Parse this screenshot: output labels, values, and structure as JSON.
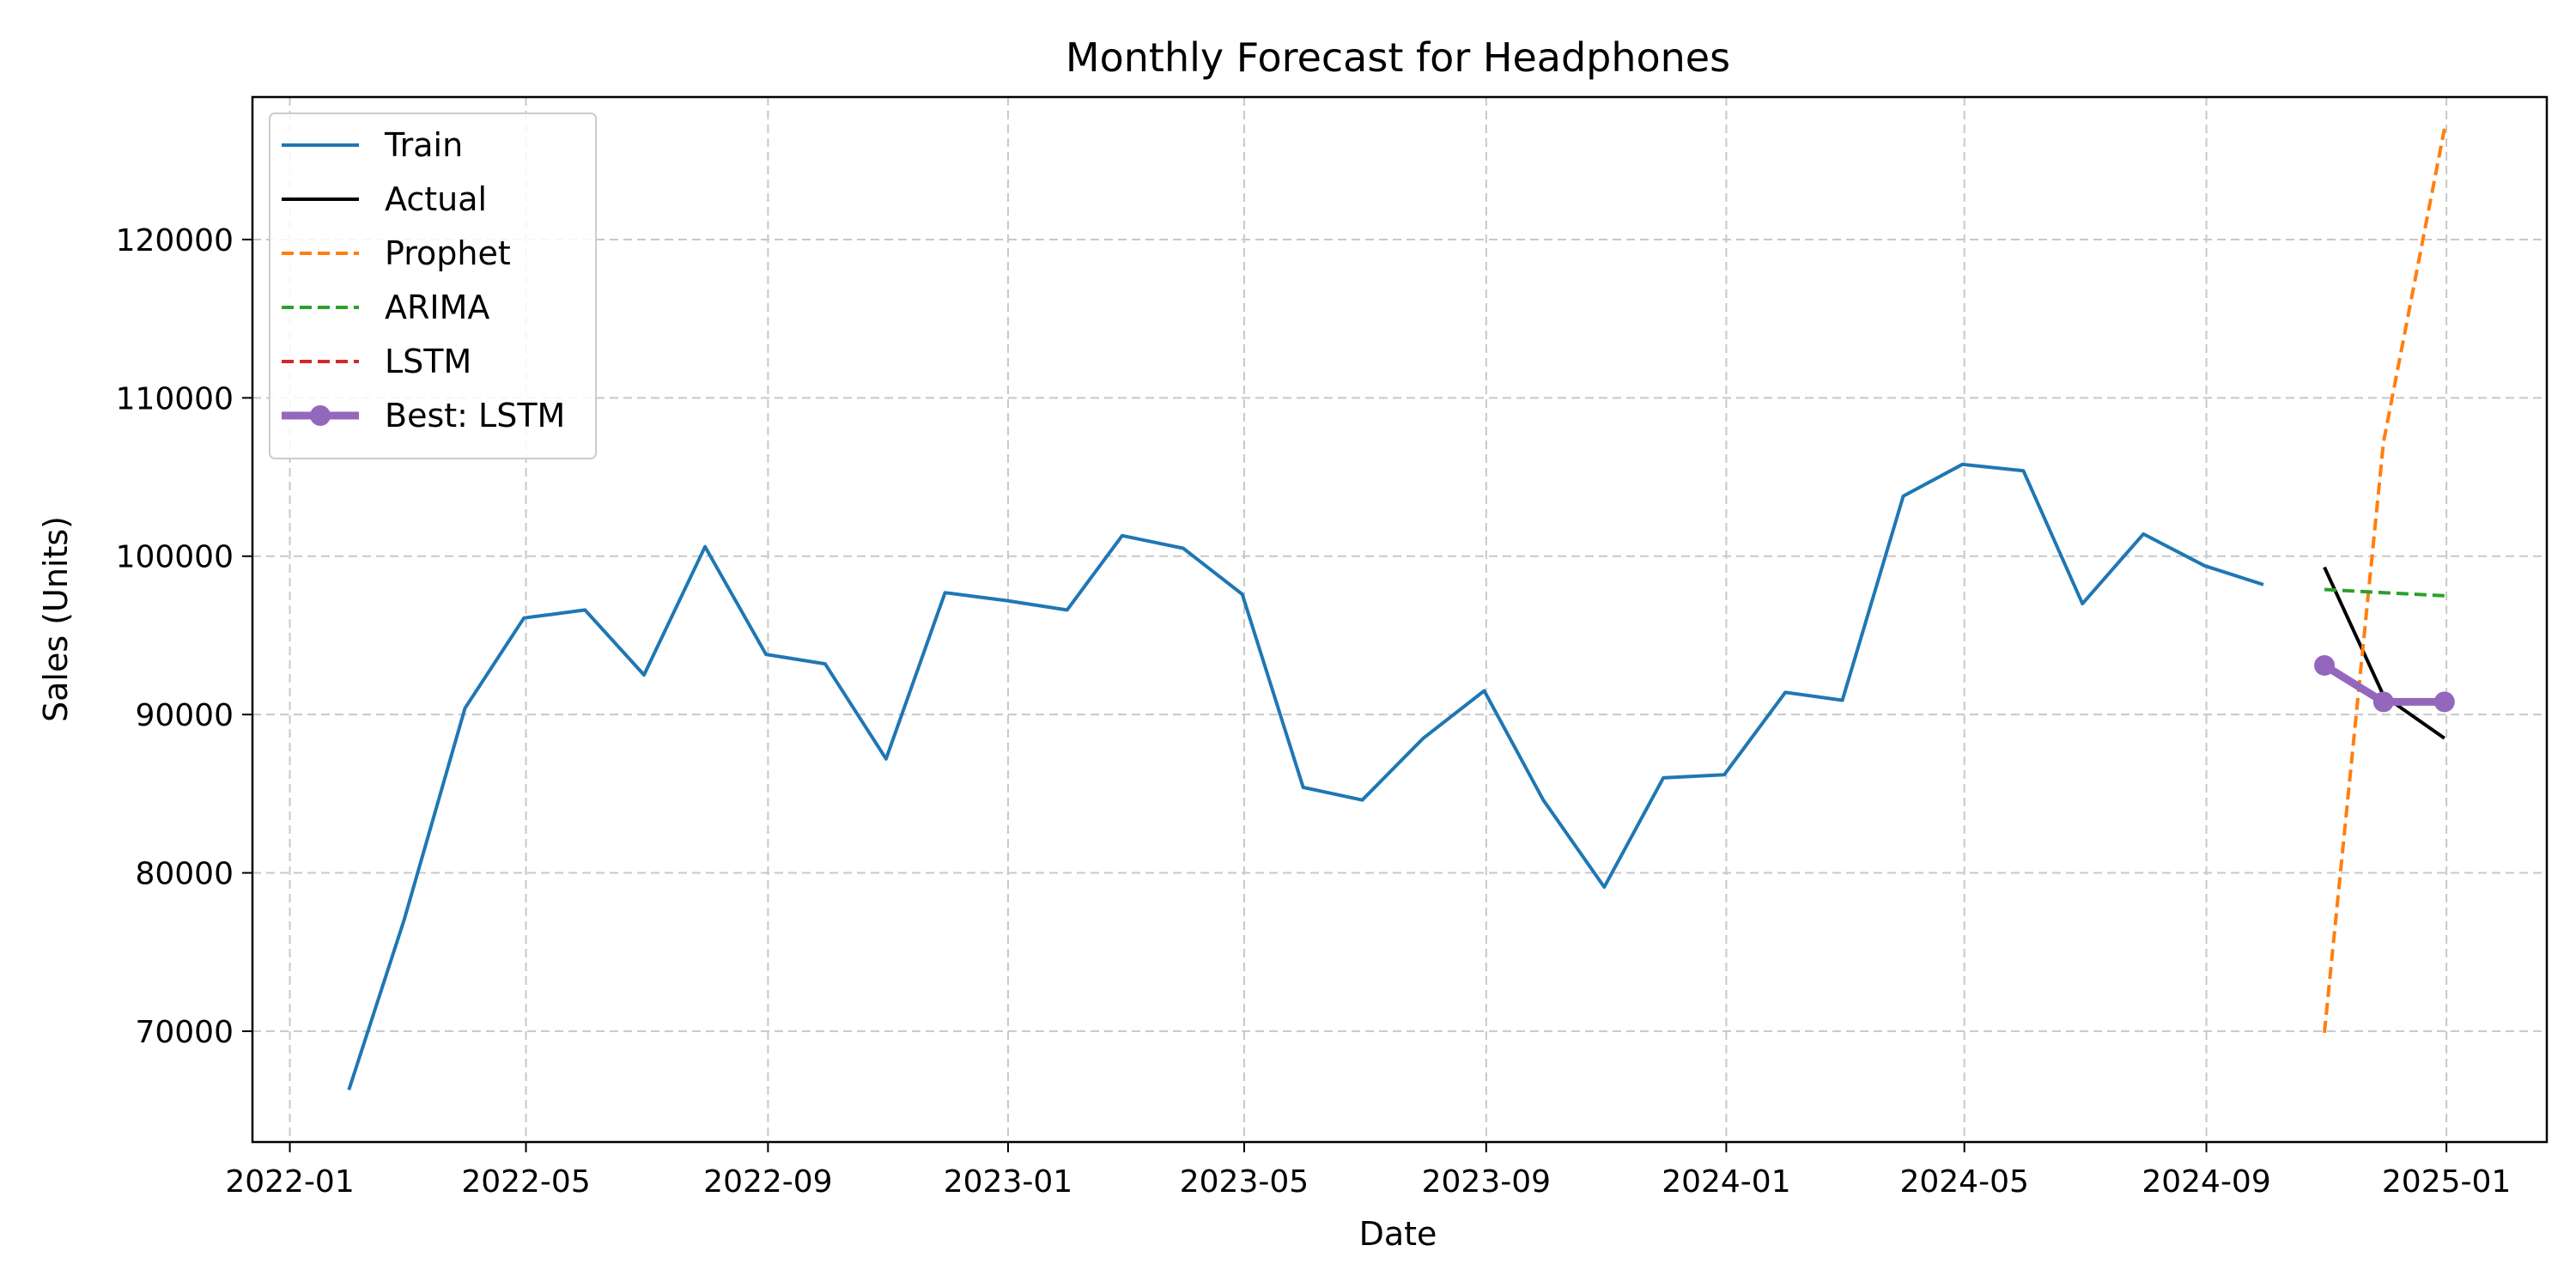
{
  "chart_data": {
    "type": "line",
    "title": "Monthly Forecast for Headphones",
    "xlabel": "Date",
    "ylabel": "Sales (Units)",
    "xlim": [
      "2021-12-13",
      "2025-02-21"
    ],
    "ylim": [
      63000,
      129000
    ],
    "x_ticks": [
      "2022-01",
      "2022-05",
      "2022-09",
      "2023-01",
      "2023-05",
      "2023-09",
      "2024-01",
      "2024-05",
      "2024-09",
      "2025-01"
    ],
    "y_ticks": [
      70000,
      80000,
      90000,
      100000,
      110000,
      120000
    ],
    "y_tick_labels": [
      "70000",
      "80000",
      "90000",
      "100000",
      "110000",
      "120000"
    ],
    "grid": true,
    "legend_position": "upper-left",
    "series": [
      {
        "name": "Train",
        "color": "#1f77b4",
        "style": "solid",
        "x": [
          "2022-01-31",
          "2022-02-28",
          "2022-03-31",
          "2022-04-30",
          "2022-05-31",
          "2022-06-30",
          "2022-07-31",
          "2022-08-31",
          "2022-09-30",
          "2022-10-31",
          "2022-11-30",
          "2022-12-31",
          "2023-01-31",
          "2023-02-28",
          "2023-03-31",
          "2023-04-30",
          "2023-05-31",
          "2023-06-30",
          "2023-07-31",
          "2023-08-31",
          "2023-09-30",
          "2023-10-31",
          "2023-11-30",
          "2023-12-31",
          "2024-01-31",
          "2024-02-29",
          "2024-03-31",
          "2024-04-30",
          "2024-05-31",
          "2024-06-30",
          "2024-07-31",
          "2024-08-31",
          "2024-09-30"
        ],
        "y": [
          66300,
          77000,
          90400,
          96100,
          96600,
          92500,
          100600,
          93800,
          93200,
          87200,
          97700,
          97200,
          96600,
          101300,
          100500,
          97600,
          85400,
          84600,
          88500,
          91500,
          84600,
          79100,
          86000,
          86200,
          91400,
          90900,
          103800,
          105800,
          105400,
          97000,
          101400,
          99400,
          98200
        ]
      },
      {
        "name": "Actual",
        "color": "#000000",
        "style": "solid",
        "x": [
          "2024-10-31",
          "2024-11-30",
          "2024-12-31"
        ],
        "y": [
          99300,
          91200,
          88500
        ]
      },
      {
        "name": "Prophet",
        "color": "#ff7f0e",
        "style": "dashed",
        "x": [
          "2024-10-31",
          "2024-11-30",
          "2024-12-31"
        ],
        "y": [
          69900,
          107200,
          127000
        ]
      },
      {
        "name": "ARIMA",
        "color": "#2ca02c",
        "style": "dashed",
        "x": [
          "2024-10-31",
          "2024-11-30",
          "2024-12-31"
        ],
        "y": [
          97900,
          97700,
          97500
        ]
      },
      {
        "name": "LSTM",
        "color": "#d62728",
        "style": "dashed",
        "x": [
          "2024-10-31",
          "2024-11-30",
          "2024-12-31"
        ],
        "y": [
          93100,
          90800,
          90800
        ]
      },
      {
        "name": "Best: LSTM",
        "color": "#9467bd",
        "style": "solid-markers",
        "x": [
          "2024-10-31",
          "2024-11-30",
          "2024-12-31"
        ],
        "y": [
          93100,
          90800,
          90800
        ]
      }
    ]
  }
}
